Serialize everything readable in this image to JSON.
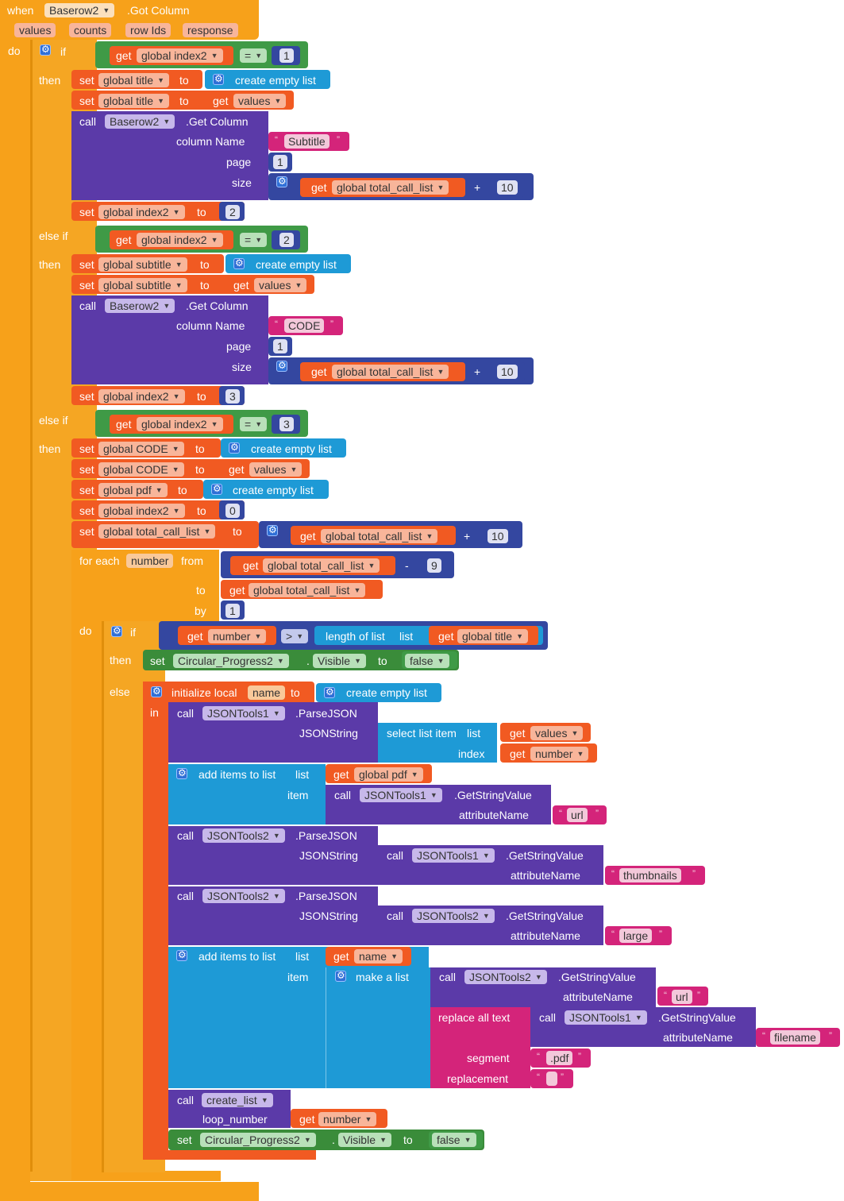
{
  "event": {
    "when": "when",
    "component": "Baserow2",
    "event_name": ".Got Column",
    "params": [
      "values",
      "counts",
      "row Ids",
      "response"
    ],
    "do": "do"
  },
  "kw": {
    "if": "if",
    "then": "then",
    "else_if": "else if",
    "else": "else",
    "do": "do",
    "in": "in",
    "set": "set",
    "to": "to",
    "get": "get",
    "call": "call",
    "create_empty_list": "create empty list",
    "get_column": ".Get Column",
    "column_name": "column Name",
    "page": "page",
    "size": "size",
    "eq": "=",
    "gt": ">",
    "plus": "+",
    "minus": "-",
    "for_each": "for each",
    "from": "from",
    "by": "by",
    "length_of_list": "length of list",
    "list": "list",
    "visible": "Visible",
    "false": "false",
    "initialize_local": "initialize local",
    "parse_json": ".ParseJSON",
    "json_string": "JSONString",
    "select_list_item": "select list item",
    "index": "index",
    "add_items_to_list": "add items to list",
    "item": "item",
    "get_string_value": ".GetStringValue",
    "attribute_name": "attributeName",
    "make_a_list": "make a list",
    "replace_all_text": "replace all text",
    "segment": "segment",
    "replacement": "replacement",
    "loop_number": "loop_number",
    "dot": "."
  },
  "vars": {
    "index2": "global index2",
    "title": "global title",
    "total_call_list": "global total_call_list",
    "subtitle": "global subtitle",
    "code": "global CODE",
    "pdf": "global pdf",
    "values": "values",
    "number": "number",
    "name": "name"
  },
  "components": {
    "baserow": "Baserow2",
    "progress": "Circular_Progress2",
    "json1": "JSONTools1",
    "json2": "JSONTools2",
    "create_list": "create_list"
  },
  "strings": {
    "subtitle": "Subtitle",
    "code": "CODE",
    "url": "url",
    "thumbnails": "thumbnails",
    "large": "large",
    "filename": "filename",
    "pdf": ".pdf",
    "empty": " "
  },
  "numbers": {
    "one": "1",
    "two": "2",
    "three": "3",
    "ten": "10",
    "zero": "0",
    "nine": "9"
  },
  "quotes": {
    "open": "“",
    "close": "”"
  },
  "icons": {
    "gear": "gear-icon",
    "dropdown": "▼"
  },
  "colors": {
    "event": "#f7a11a",
    "logic": "#3f9a46",
    "variable": "#f15a22",
    "component": "#5b3aa8",
    "list": "#1e9ad6",
    "text": "#d4247a",
    "math": "#3447a0"
  }
}
